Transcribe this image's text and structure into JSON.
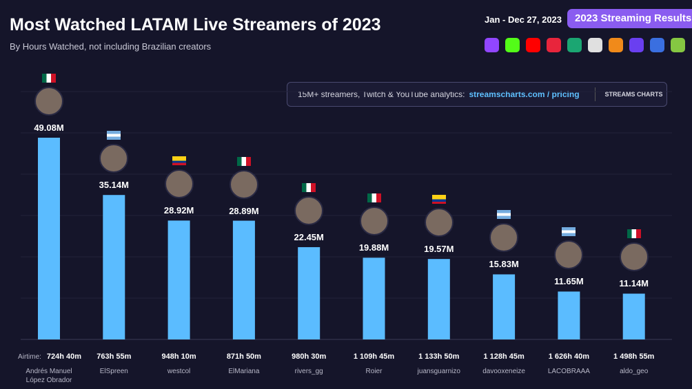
{
  "header": {
    "title": "Most Watched LATAM Live Streamers of 2023",
    "subtitle": "By Hours Watched, not including Brazilian creators",
    "date_range": "Jan - Dec 27, 2023",
    "badge": "2023 Streaming Results"
  },
  "platform_icons": [
    {
      "name": "twitch-icon",
      "color": "#9146ff"
    },
    {
      "name": "kick-icon",
      "color": "#53fc18"
    },
    {
      "name": "youtube-icon",
      "color": "#ff0000"
    },
    {
      "name": "heart-icon",
      "color": "#e8253c"
    },
    {
      "name": "trovo-icon",
      "color": "#1ba672"
    },
    {
      "name": "ghost-icon",
      "color": "#e0e0e0"
    },
    {
      "name": "afreeca-icon",
      "color": "#f08a1a"
    },
    {
      "name": "tv-icon",
      "color": "#6a3ff0"
    },
    {
      "name": "face-icon",
      "color": "#3a6fe0"
    },
    {
      "name": "rumble-icon",
      "color": "#85c742"
    }
  ],
  "promo": {
    "text": "15M+ streamers, Twitch & YouTube analytics:",
    "link": "streamscharts.com / pricing",
    "logo": "STREAMS CHARTS"
  },
  "airtime_label": "Airtime:",
  "chart_data": {
    "type": "bar",
    "title": "Most Watched LATAM Live Streamers of 2023",
    "ylabel": "Hours Watched",
    "ylim": [
      0,
      55
    ],
    "grid": true,
    "bar_color": "#5bbcff",
    "categories": [
      "Andrés Manuel López Obrador",
      "ElSpreen",
      "westcol",
      "ElMariana",
      "rivers_gg",
      "Roier",
      "juansguarnizo",
      "davooxeneize",
      "LACOBRAAA",
      "aldo_geo"
    ],
    "values": [
      49.08,
      35.14,
      28.92,
      28.89,
      22.45,
      19.88,
      19.57,
      15.83,
      11.65,
      11.14
    ],
    "value_labels": [
      "49.08M",
      "35.14M",
      "28.92M",
      "28.89M",
      "22.45M",
      "19.88M",
      "19.57M",
      "15.83M",
      "11.65M",
      "11.14M"
    ],
    "airtime": [
      "724h 40m",
      "763h 55m",
      "948h 10m",
      "871h 50m",
      "980h 30m",
      "1 109h 45m",
      "1 133h 50m",
      "1 128h 45m",
      "1 626h 40m",
      "1 498h 55m"
    ],
    "countries": [
      "MX",
      "AR",
      "CO",
      "MX",
      "MX",
      "MX",
      "CO",
      "AR",
      "AR",
      "MX"
    ]
  }
}
